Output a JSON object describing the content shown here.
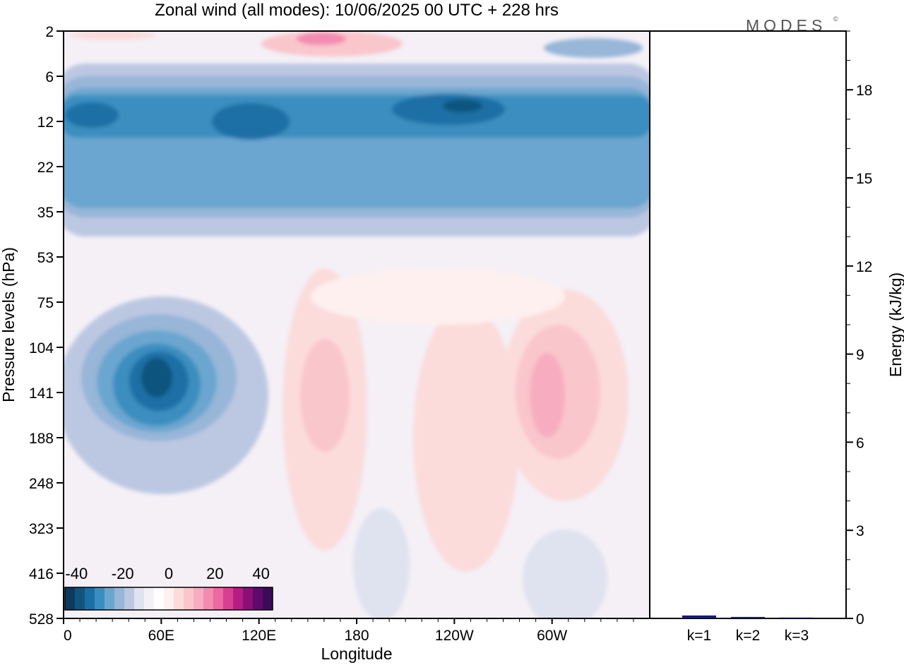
{
  "title": "Zonal wind (all modes):  10/06/2025  00 UTC  + 228 hrs",
  "logo_text": "MODES",
  "logo_mark": "©",
  "chart_data": [
    {
      "type": "heatmap",
      "title": "Zonal wind (all modes):  10/06/2025  00 UTC  + 228 hrs",
      "xlabel": "Longitude",
      "ylabel": "Pressure levels (hPa)",
      "x_ticks": [
        "0",
        "60E",
        "120E",
        "180",
        "120W",
        "60W"
      ],
      "y_ticks": [
        "2",
        "6",
        "12",
        "22",
        "35",
        "53",
        "75",
        "104",
        "141",
        "188",
        "248",
        "323",
        "416",
        "528"
      ],
      "colorbar": {
        "tick_labels": [
          "-40",
          "-20",
          "0",
          "20",
          "40"
        ],
        "min": -45,
        "max": 45,
        "colors": [
          "#0b3a5e",
          "#11557f",
          "#1a6fa5",
          "#3a8ebf",
          "#6aa6cf",
          "#97b6d8",
          "#bcc8e2",
          "#dfe2ef",
          "#f4f0f6",
          "#ffffff",
          "#fdf0ef",
          "#fbdcdb",
          "#f9c6cc",
          "#f7adbf",
          "#f28cb0",
          "#ea6aa1",
          "#d83f92",
          "#b51d84",
          "#8c0f78",
          "#5e0a6d",
          "#3d0a5a"
        ]
      },
      "features": [
        {
          "description": "stratospheric easterly band",
          "lon_range": [
            0,
            360
          ],
          "level_range": [
            8,
            30
          ],
          "max_easterly": -40
        },
        {
          "description": "easterly jet core",
          "lon_center": 55,
          "level_center": 141,
          "min_value": -35
        },
        {
          "description": "westerly maximum",
          "lon_center": 290,
          "level_center": 141,
          "max_value": 18
        },
        {
          "description": "westerly maximum",
          "lon_center": 150,
          "level_center": 141,
          "max_value": 12
        }
      ]
    },
    {
      "type": "bar",
      "categories": [
        "k=1",
        "k=2",
        "k=3"
      ],
      "values": [
        0.1,
        0.05,
        0.03
      ],
      "ylabel": "Energy (kJ/kg)",
      "ylim": [
        0,
        20
      ],
      "y_ticks": [
        "0",
        "3",
        "6",
        "9",
        "12",
        "15",
        "18"
      ]
    }
  ]
}
